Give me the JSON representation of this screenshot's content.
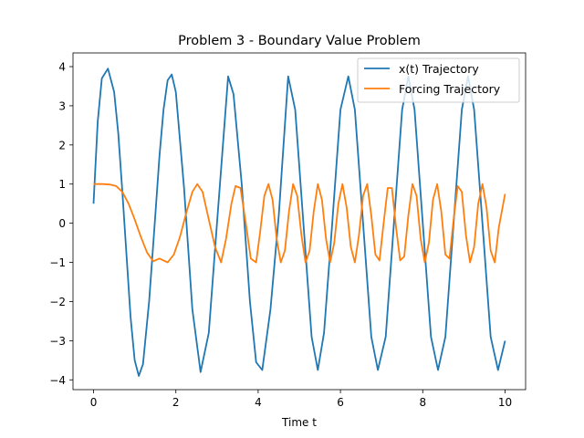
{
  "chart_data": {
    "type": "line",
    "title": "Problem 3 - Boundary Value Problem",
    "xlabel": "Time t",
    "ylabel": "",
    "xlim": [
      -0.5,
      10.5
    ],
    "ylim": [
      -4.25,
      4.35
    ],
    "xticks": [
      0,
      2,
      4,
      6,
      8,
      10
    ],
    "yticks": [
      -4,
      -3,
      -2,
      -1,
      0,
      1,
      2,
      3,
      4
    ],
    "grid": false,
    "legend_position": "top-right",
    "series": [
      {
        "name": "x(t) Trajectory",
        "color": "#1f77b4",
        "x": [
          0.0,
          0.1,
          0.2,
          0.35,
          0.5,
          0.6,
          0.7,
          0.8,
          0.9,
          1.0,
          1.1,
          1.2,
          1.35,
          1.5,
          1.6,
          1.7,
          1.8,
          1.9,
          2.0,
          2.2,
          2.4,
          2.6,
          2.8,
          3.0,
          3.27,
          3.4,
          3.6,
          3.8,
          3.95,
          4.1,
          4.3,
          4.5,
          4.73,
          4.9,
          5.1,
          5.3,
          5.45,
          5.6,
          5.8,
          6.0,
          6.19,
          6.35,
          6.55,
          6.75,
          6.91,
          7.1,
          7.3,
          7.5,
          7.65,
          7.8,
          8.0,
          8.2,
          8.37,
          8.55,
          8.75,
          8.95,
          9.1,
          9.25,
          9.45,
          9.65,
          9.83,
          10.0
        ],
        "y": [
          0.5,
          2.6,
          3.7,
          3.95,
          3.35,
          2.3,
          0.8,
          -0.8,
          -2.4,
          -3.5,
          -3.9,
          -3.6,
          -2.0,
          0.2,
          1.7,
          2.9,
          3.65,
          3.8,
          3.35,
          0.9,
          -2.2,
          -3.8,
          -2.8,
          0.0,
          3.75,
          3.3,
          1.0,
          -2.0,
          -3.55,
          -3.75,
          -2.2,
          0.2,
          3.75,
          2.9,
          0.0,
          -2.9,
          -3.75,
          -2.8,
          0.0,
          2.9,
          3.75,
          2.9,
          0.0,
          -2.9,
          -3.75,
          -2.9,
          0.0,
          2.9,
          3.75,
          2.9,
          0.0,
          -2.9,
          -3.75,
          -2.9,
          0.0,
          2.9,
          3.75,
          2.9,
          0.0,
          -2.9,
          -3.75,
          -3.0
        ]
      },
      {
        "name": "Forcing Trajectory",
        "color": "#ff7f0e",
        "x": [
          0.0,
          0.2,
          0.4,
          0.55,
          0.7,
          0.85,
          1.0,
          1.15,
          1.3,
          1.45,
          1.6,
          1.8,
          1.95,
          2.1,
          2.25,
          2.4,
          2.52,
          2.65,
          2.8,
          2.95,
          3.1,
          3.22,
          3.35,
          3.45,
          3.57,
          3.7,
          3.82,
          3.95,
          4.05,
          4.15,
          4.25,
          4.35,
          4.45,
          4.55,
          4.65,
          4.75,
          4.85,
          4.95,
          5.05,
          5.15,
          5.25,
          5.35,
          5.45,
          5.55,
          5.65,
          5.75,
          5.85,
          5.95,
          6.05,
          6.15,
          6.25,
          6.35,
          6.45,
          6.55,
          6.65,
          6.75,
          6.85,
          6.95,
          7.05,
          7.15,
          7.25,
          7.35,
          7.45,
          7.55,
          7.65,
          7.75,
          7.85,
          7.95,
          8.05,
          8.15,
          8.25,
          8.35,
          8.45,
          8.55,
          8.65,
          8.75,
          8.85,
          8.95,
          9.05,
          9.15,
          9.25,
          9.35,
          9.45,
          9.55,
          9.65,
          9.75,
          9.85,
          10.0
        ],
        "y": [
          1.0,
          1.0,
          0.99,
          0.95,
          0.8,
          0.5,
          0.1,
          -0.35,
          -0.75,
          -0.97,
          -0.9,
          -1.0,
          -0.8,
          -0.35,
          0.25,
          0.8,
          1.0,
          0.8,
          0.1,
          -0.6,
          -1.0,
          -0.4,
          0.5,
          0.95,
          0.9,
          0.0,
          -0.9,
          -1.0,
          -0.2,
          0.7,
          1.0,
          0.6,
          -0.4,
          -1.0,
          -0.7,
          0.3,
          1.0,
          0.7,
          -0.3,
          -1.0,
          -0.7,
          0.3,
          1.0,
          0.6,
          -0.4,
          -1.0,
          -0.5,
          0.5,
          1.0,
          0.4,
          -0.6,
          -1.0,
          -0.3,
          0.7,
          1.0,
          0.2,
          -0.8,
          -0.95,
          0.0,
          0.9,
          0.9,
          -0.1,
          -0.95,
          -0.85,
          0.2,
          1.0,
          0.7,
          -0.4,
          -1.0,
          -0.5,
          0.6,
          1.0,
          0.3,
          -0.8,
          -0.9,
          0.1,
          0.95,
          0.8,
          -0.3,
          -1.0,
          -0.6,
          0.5,
          1.0,
          0.4,
          -0.7,
          -1.0,
          -0.1,
          0.75
        ]
      }
    ]
  }
}
